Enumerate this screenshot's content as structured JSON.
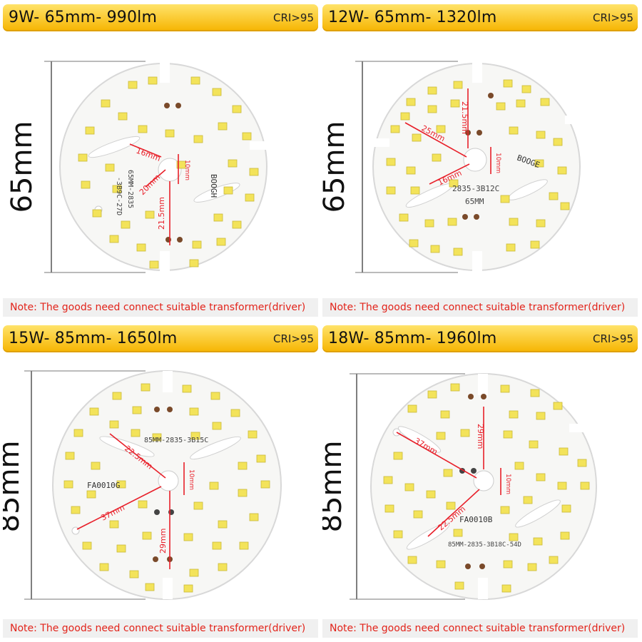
{
  "panels": [
    {
      "spec": "9W- 65mm- 990lm",
      "cri": "CRI>95",
      "diameter_label": "65mm",
      "measurements": [
        "16mm",
        "10mm",
        "20mm",
        "21.5mm"
      ],
      "board_marking": "65MM-2835",
      "board_marking_2": "-3B9C-27D",
      "brand_marking": "BOOGH",
      "note": "Note: The goods need connect suitable transformer(driver)"
    },
    {
      "spec": "12W- 65mm- 1320lm",
      "cri": "CRI>95",
      "diameter_label": "65mm",
      "measurements": [
        "21.5mm",
        "25mm",
        "16mm",
        "10mm"
      ],
      "board_marking": "2835-3B12C",
      "board_marking_2": "65MM",
      "brand_marking": "BOOGE",
      "note": "Note: The goods need connect suitable transformer(driver)"
    },
    {
      "spec": "15W- 85mm- 1650lm",
      "cri": "CRI>95",
      "diameter_label": "85mm",
      "measurements": [
        "22.5mm",
        "10mm",
        "37mm",
        "29mm"
      ],
      "board_marking": "85MM-2835-3B15C",
      "board_marking_2": "",
      "brand_marking": "FA0010G",
      "note": "Note: The goods need connect suitable transformer(driver)"
    },
    {
      "spec": "18W- 85mm- 1960lm",
      "cri": "CRI>95",
      "diameter_label": "85mm",
      "measurements": [
        "29mm",
        "37mm",
        "10mm",
        "22.5mm"
      ],
      "board_marking": "85MM-2835-3B18C-54D",
      "board_marking_2": "",
      "brand_marking": "FA0010B",
      "note": "Note: The goods need connect suitable transformer(driver)"
    }
  ],
  "colors": {
    "banner_top": "#ffe36a",
    "banner_bottom": "#f6b400",
    "note_text": "#e2231a",
    "note_bg": "#f0f0f0",
    "measure_line": "#e8202a",
    "led_yellow": "#f3e35a"
  }
}
